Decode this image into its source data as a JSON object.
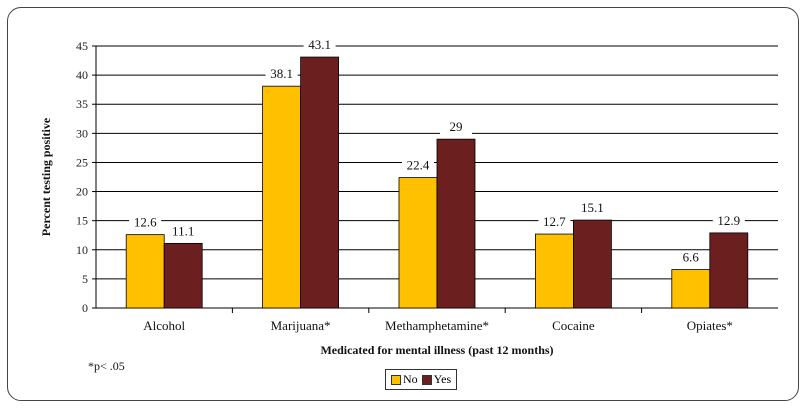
{
  "chart_data": {
    "type": "bar",
    "categories": [
      "Alcohol",
      "Marijuana*",
      "Methamphetamine*",
      "Cocaine",
      "Opiates*"
    ],
    "series": [
      {
        "name": "No",
        "values": [
          12.6,
          38.1,
          22.4,
          12.7,
          6.6
        ],
        "color": "#FFC000"
      },
      {
        "name": "Yes",
        "values": [
          11.1,
          43.1,
          29,
          15.1,
          12.9
        ],
        "color": "#6B1F1F"
      }
    ],
    "title": "",
    "xlabel": "Medicated for mental illness (past 12 months)",
    "ylabel": "Percent testing positive",
    "ylim": [
      0,
      45
    ],
    "yticks": [
      0,
      5,
      10,
      15,
      20,
      25,
      30,
      35,
      40,
      45
    ],
    "grid": true,
    "legend": "bottom",
    "footnote": "*p< .05"
  }
}
